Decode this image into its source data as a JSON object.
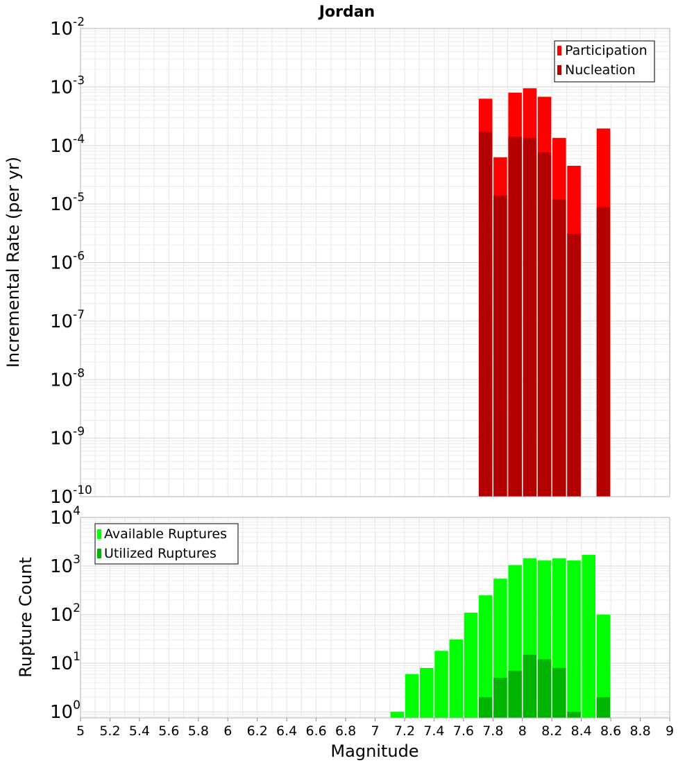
{
  "chart_data": [
    {
      "type": "bar",
      "title": "Jordan",
      "xlabel": "",
      "ylabel": "Incremental Rate (per yr)",
      "yscale": "log",
      "ylim": [
        1e-10,
        0.01
      ],
      "xlim": [
        5,
        9
      ],
      "y_ticks": [
        {
          "base": "10",
          "exp": "-2",
          "value": 0.01
        },
        {
          "base": "10",
          "exp": "-3",
          "value": 0.001
        },
        {
          "base": "10",
          "exp": "-4",
          "value": 0.0001
        },
        {
          "base": "10",
          "exp": "-5",
          "value": 1e-05
        },
        {
          "base": "10",
          "exp": "-6",
          "value": 1e-06
        },
        {
          "base": "10",
          "exp": "-7",
          "value": 1e-07
        },
        {
          "base": "10",
          "exp": "-8",
          "value": 1e-08
        },
        {
          "base": "10",
          "exp": "-9",
          "value": 1e-09
        },
        {
          "base": "10",
          "exp": "-10",
          "value": 1e-10
        }
      ],
      "legend_position": "top-right",
      "x": [
        7.75,
        7.85,
        7.95,
        8.05,
        8.15,
        8.25,
        8.35,
        8.55
      ],
      "series": [
        {
          "name": "Participation",
          "color": "#ff0000",
          "values": [
            0.00063,
            6.3e-05,
            0.0008,
            0.00095,
            0.00068,
            0.000135,
            4.5e-05,
            0.000195
          ]
        },
        {
          "name": "Nucleation",
          "color": "#b30000",
          "values": [
            0.00017,
            1.4e-05,
            0.00014,
            0.000135,
            7.5e-05,
            1.2e-05,
            3.1e-06,
            8.8e-06
          ]
        }
      ]
    },
    {
      "type": "bar",
      "title": "",
      "xlabel": "Magnitude",
      "ylabel": "Rupture Count",
      "yscale": "log",
      "ylim": [
        0.75,
        10000
      ],
      "xlim": [
        5,
        9
      ],
      "y_ticks": [
        {
          "base": "10",
          "exp": "4",
          "value": 10000
        },
        {
          "base": "10",
          "exp": "3",
          "value": 1000
        },
        {
          "base": "10",
          "exp": "2",
          "value": 100
        },
        {
          "base": "10",
          "exp": "1",
          "value": 10
        },
        {
          "base": "10",
          "exp": "0",
          "value": 1
        }
      ],
      "x_ticks": [
        "5",
        "5.2",
        "5.4",
        "5.6",
        "5.8",
        "6",
        "6.2",
        "6.4",
        "6.6",
        "6.8",
        "7",
        "7.2",
        "7.4",
        "7.6",
        "7.8",
        "8",
        "8.2",
        "8.4",
        "8.6",
        "8.8",
        "9"
      ],
      "legend_position": "top-left",
      "x": [
        7.15,
        7.25,
        7.35,
        7.45,
        7.55,
        7.65,
        7.75,
        7.85,
        7.95,
        8.05,
        8.15,
        8.25,
        8.35,
        8.45,
        8.55
      ],
      "series": [
        {
          "name": "Available Ruptures",
          "color": "#00ff00",
          "values": [
            1,
            6,
            8,
            18,
            31,
            110,
            250,
            550,
            1050,
            1450,
            1300,
            1450,
            1300,
            1700,
            100
          ]
        },
        {
          "name": "Utilized Ruptures",
          "color": "#00b300",
          "values": [
            0,
            0,
            0,
            0,
            0,
            0,
            2,
            5,
            7,
            15,
            12,
            8,
            1,
            0,
            2
          ]
        }
      ]
    }
  ]
}
